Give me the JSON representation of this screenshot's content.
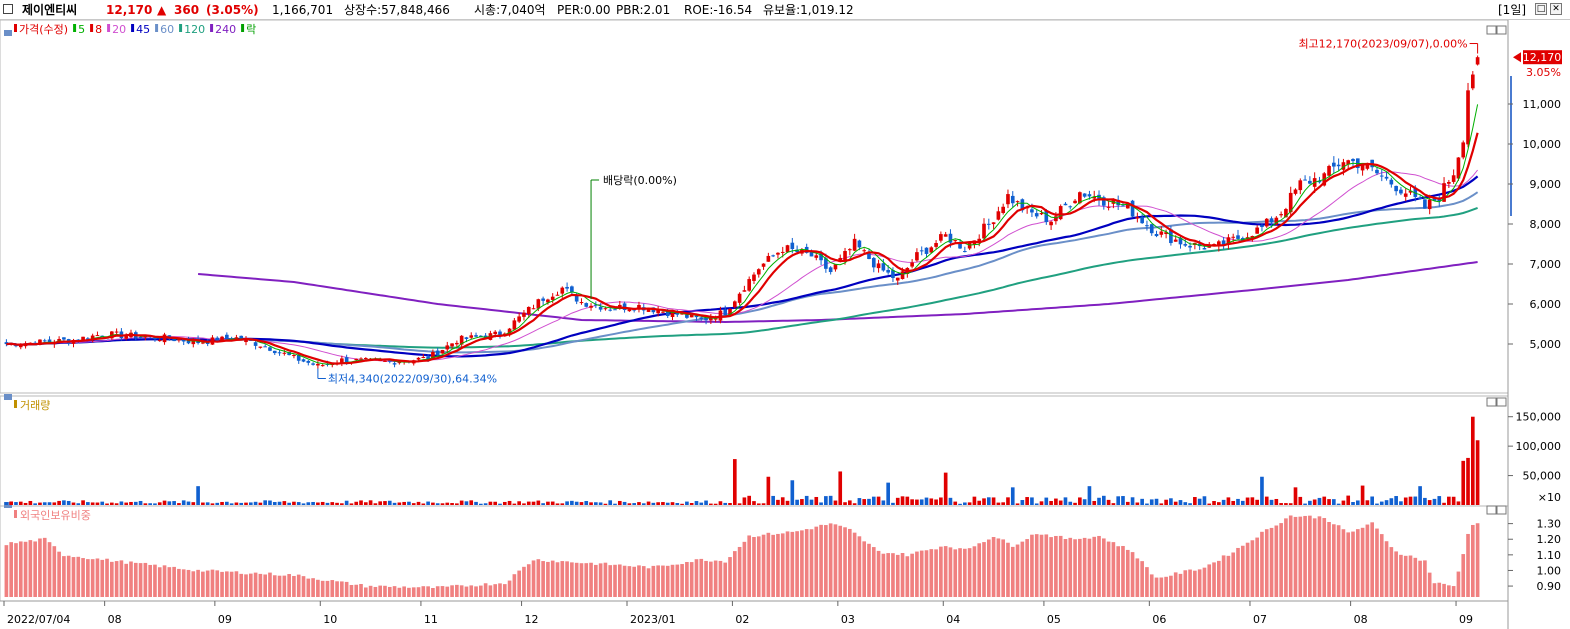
{
  "header": {
    "name": "제이엔티씨",
    "price": "12,170",
    "change_arrow": "▲",
    "change": "360",
    "change_pct": "(3.05%)",
    "volume": "1,166,701",
    "listed": "상장수:57,848,466",
    "mcap": "시총:7,040억",
    "per": "PER:0.00",
    "pbr": "PBR:2.01",
    "roe": "ROE:-16.54",
    "float": "유보율:1,019.12",
    "period": "[1일]"
  },
  "legend": [
    {
      "text": "가격(수정)",
      "color": "#e00000"
    },
    {
      "text": "5",
      "color": "#00b000"
    },
    {
      "text": "8",
      "color": "#e00000"
    },
    {
      "text": "20",
      "color": "#d050d0"
    },
    {
      "text": "45",
      "color": "#0000c0"
    },
    {
      "text": "60",
      "color": "#6a8fc8"
    },
    {
      "text": "120",
      "color": "#20a080"
    },
    {
      "text": "240",
      "color": "#8020c0"
    },
    {
      "text": "락",
      "color": "#00a000"
    }
  ],
  "colors": {
    "up": "#e00000",
    "down": "#1060d0",
    "vol_up": "#e00000",
    "vol_down": "#1060d0",
    "foreign": "#f08080",
    "ma5": "#00b000",
    "ma8": "#e00000",
    "ma20": "#d050d0",
    "ma45": "#0000c0",
    "ma60": "#6a8fc8",
    "ma120": "#20a080",
    "ma240": "#8020c0"
  },
  "annotations": {
    "high": "최고12,170(2023/09/07),0.00%",
    "low": "최저4,340(2022/09/30),64.34%",
    "dividend": "배당락(0.00%)",
    "last_price": "12,170",
    "last_pct": "3.05%"
  },
  "chart_data": [
    {
      "type": "candlestick",
      "title": "",
      "series_labels": [
        "가격(수정)",
        "5",
        "8",
        "20",
        "45",
        "60",
        "120",
        "240",
        "락"
      ],
      "y_ticks": [
        "5,000",
        "6,000",
        "7,000",
        "8,000",
        "9,000",
        "10,000",
        "11,000"
      ],
      "y_tick_values": [
        5000,
        6000,
        7000,
        8000,
        9000,
        10000,
        11000
      ],
      "ylim": [
        4000,
        12800
      ],
      "x_tick_labels": [
        "2022/07/04",
        "08",
        "09",
        "10",
        "11",
        "12",
        "2023/01",
        "02",
        "03",
        "04",
        "05",
        "06",
        "07",
        "08",
        "09"
      ],
      "x_tick_index": [
        0,
        21,
        44,
        66,
        87,
        108,
        130,
        152,
        174,
        196,
        217,
        239,
        260,
        281,
        303
      ],
      "anchors": [
        {
          "i": 0,
          "p": 5000
        },
        {
          "i": 8,
          "p": 5050
        },
        {
          "i": 14,
          "p": 5100
        },
        {
          "i": 20,
          "p": 5250
        },
        {
          "i": 26,
          "p": 5200
        },
        {
          "i": 33,
          "p": 5150
        },
        {
          "i": 40,
          "p": 5050
        },
        {
          "i": 48,
          "p": 5150
        },
        {
          "i": 54,
          "p": 4950
        },
        {
          "i": 60,
          "p": 4650
        },
        {
          "i": 65,
          "p": 4450
        },
        {
          "i": 70,
          "p": 4600
        },
        {
          "i": 80,
          "p": 4550
        },
        {
          "i": 88,
          "p": 4650
        },
        {
          "i": 94,
          "p": 5100
        },
        {
          "i": 103,
          "p": 5250
        },
        {
          "i": 108,
          "p": 5750
        },
        {
          "i": 112,
          "p": 6150
        },
        {
          "i": 116,
          "p": 6400
        },
        {
          "i": 120,
          "p": 6050
        },
        {
          "i": 126,
          "p": 5900
        },
        {
          "i": 132,
          "p": 5950
        },
        {
          "i": 138,
          "p": 5800
        },
        {
          "i": 145,
          "p": 5600
        },
        {
          "i": 150,
          "p": 5800
        },
        {
          "i": 153,
          "p": 6300
        },
        {
          "i": 157,
          "p": 6900
        },
        {
          "i": 162,
          "p": 7400
        },
        {
          "i": 168,
          "p": 7200
        },
        {
          "i": 172,
          "p": 6800
        },
        {
          "i": 177,
          "p": 7500
        },
        {
          "i": 182,
          "p": 6900
        },
        {
          "i": 186,
          "p": 6600
        },
        {
          "i": 190,
          "p": 7200
        },
        {
          "i": 196,
          "p": 7700
        },
        {
          "i": 200,
          "p": 7400
        },
        {
          "i": 205,
          "p": 8000
        },
        {
          "i": 209,
          "p": 8700
        },
        {
          "i": 213,
          "p": 8300
        },
        {
          "i": 218,
          "p": 8100
        },
        {
          "i": 224,
          "p": 8800
        },
        {
          "i": 229,
          "p": 8600
        },
        {
          "i": 234,
          "p": 8400
        },
        {
          "i": 240,
          "p": 7800
        },
        {
          "i": 246,
          "p": 7500
        },
        {
          "i": 252,
          "p": 7400
        },
        {
          "i": 258,
          "p": 7700
        },
        {
          "i": 262,
          "p": 7900
        },
        {
          "i": 266,
          "p": 8300
        },
        {
          "i": 270,
          "p": 9000
        },
        {
          "i": 275,
          "p": 9200
        },
        {
          "i": 279,
          "p": 9600
        },
        {
          "i": 283,
          "p": 9500
        },
        {
          "i": 288,
          "p": 9100
        },
        {
          "i": 292,
          "p": 8800
        },
        {
          "i": 296,
          "p": 8400
        },
        {
          "i": 299,
          "p": 8700
        },
        {
          "i": 302,
          "p": 9300
        },
        {
          "i": 304,
          "p": 10200
        },
        {
          "i": 305,
          "p": 11400
        },
        {
          "i": 306,
          "p": 11800
        },
        {
          "i": 307,
          "p": 12170
        }
      ],
      "ma240_anchors": [
        {
          "i": 40,
          "p": 6750
        },
        {
          "i": 60,
          "p": 6550
        },
        {
          "i": 90,
          "p": 6000
        },
        {
          "i": 120,
          "p": 5600
        },
        {
          "i": 150,
          "p": 5550
        },
        {
          "i": 170,
          "p": 5600
        },
        {
          "i": 200,
          "p": 5750
        },
        {
          "i": 230,
          "p": 6000
        },
        {
          "i": 260,
          "p": 6350
        },
        {
          "i": 280,
          "p": 6600
        },
        {
          "i": 307,
          "p": 7050
        }
      ]
    },
    {
      "type": "bar",
      "title": "",
      "series_labels": [
        "거래량"
      ],
      "y_ticks": [
        "150,000",
        "100,000",
        "50,000"
      ],
      "y_tick_values": [
        150000,
        100000,
        50000
      ],
      "unit": "×10",
      "ylim": [
        0,
        175000
      ],
      "spikes": [
        {
          "i": 40,
          "v": 32000
        },
        {
          "i": 152,
          "v": 78000
        },
        {
          "i": 159,
          "v": 48000
        },
        {
          "i": 164,
          "v": 42000
        },
        {
          "i": 174,
          "v": 57000
        },
        {
          "i": 184,
          "v": 38000
        },
        {
          "i": 196,
          "v": 55000
        },
        {
          "i": 210,
          "v": 30000
        },
        {
          "i": 226,
          "v": 32000
        },
        {
          "i": 262,
          "v": 48000
        },
        {
          "i": 269,
          "v": 30000
        },
        {
          "i": 283,
          "v": 33000
        },
        {
          "i": 295,
          "v": 32000
        },
        {
          "i": 304,
          "v": 75000
        },
        {
          "i": 305,
          "v": 80000
        },
        {
          "i": 306,
          "v": 150000
        },
        {
          "i": 307,
          "v": 110000
        }
      ]
    },
    {
      "type": "bar",
      "title": "",
      "series_labels": [
        "외국인보유비중"
      ],
      "y_ticks": [
        "1.30",
        "1.20",
        "1.10",
        "1.00",
        "0.90"
      ],
      "y_tick_values": [
        1.3,
        1.2,
        1.1,
        1.0,
        0.9
      ],
      "ylim": [
        0.83,
        1.4
      ],
      "anchors": [
        {
          "i": 0,
          "v": 1.17
        },
        {
          "i": 8,
          "v": 1.2
        },
        {
          "i": 12,
          "v": 1.1
        },
        {
          "i": 20,
          "v": 1.07
        },
        {
          "i": 40,
          "v": 1.0
        },
        {
          "i": 60,
          "v": 0.97
        },
        {
          "i": 75,
          "v": 0.9
        },
        {
          "i": 90,
          "v": 0.89
        },
        {
          "i": 104,
          "v": 0.92
        },
        {
          "i": 110,
          "v": 1.07
        },
        {
          "i": 120,
          "v": 1.05
        },
        {
          "i": 135,
          "v": 1.02
        },
        {
          "i": 145,
          "v": 1.07
        },
        {
          "i": 150,
          "v": 1.06
        },
        {
          "i": 155,
          "v": 1.22
        },
        {
          "i": 165,
          "v": 1.25
        },
        {
          "i": 172,
          "v": 1.3
        },
        {
          "i": 176,
          "v": 1.26
        },
        {
          "i": 182,
          "v": 1.12
        },
        {
          "i": 188,
          "v": 1.1
        },
        {
          "i": 196,
          "v": 1.16
        },
        {
          "i": 200,
          "v": 1.13
        },
        {
          "i": 206,
          "v": 1.22
        },
        {
          "i": 210,
          "v": 1.16
        },
        {
          "i": 215,
          "v": 1.24
        },
        {
          "i": 222,
          "v": 1.2
        },
        {
          "i": 228,
          "v": 1.22
        },
        {
          "i": 235,
          "v": 1.12
        },
        {
          "i": 240,
          "v": 0.95
        },
        {
          "i": 250,
          "v": 1.02
        },
        {
          "i": 256,
          "v": 1.12
        },
        {
          "i": 262,
          "v": 1.24
        },
        {
          "i": 268,
          "v": 1.35
        },
        {
          "i": 275,
          "v": 1.34
        },
        {
          "i": 280,
          "v": 1.24
        },
        {
          "i": 285,
          "v": 1.3
        },
        {
          "i": 290,
          "v": 1.12
        },
        {
          "i": 296,
          "v": 1.06
        },
        {
          "i": 298,
          "v": 0.92
        },
        {
          "i": 302,
          "v": 0.9
        },
        {
          "i": 304,
          "v": 1.1
        },
        {
          "i": 305,
          "v": 1.24
        },
        {
          "i": 306,
          "v": 1.3
        },
        {
          "i": 307,
          "v": 1.3
        }
      ]
    }
  ]
}
